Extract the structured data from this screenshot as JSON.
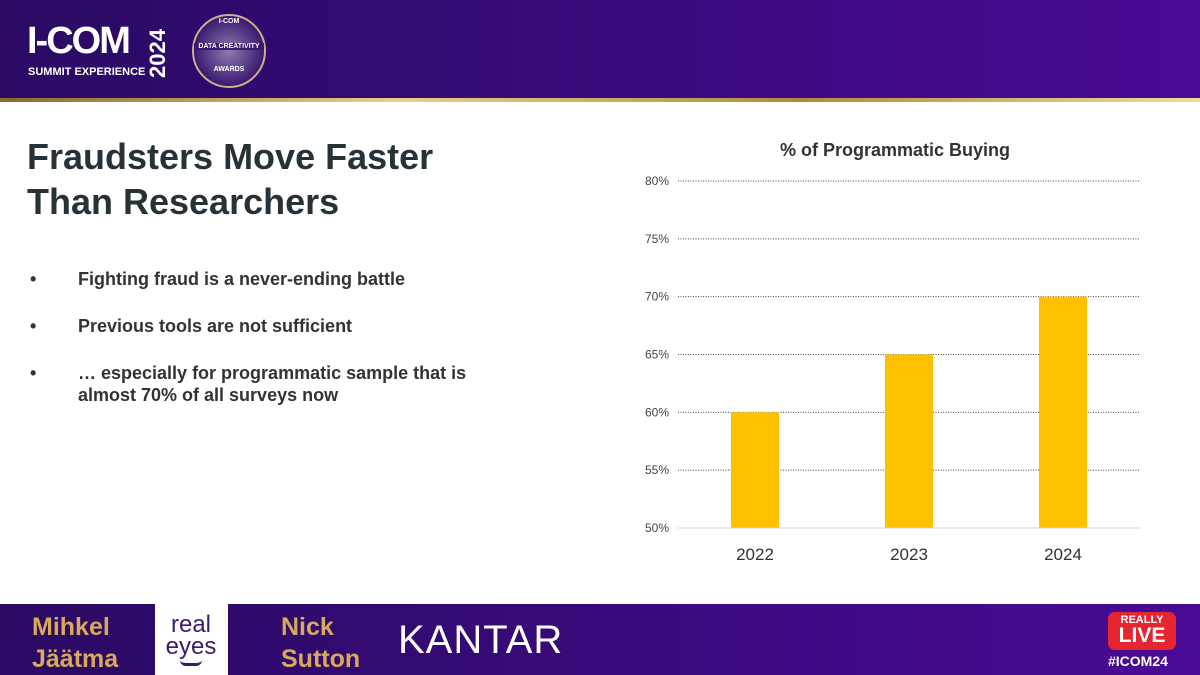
{
  "header": {
    "logo": "I-COM",
    "logo_sub": "SUMMIT EXPERIENCE",
    "year": "2024",
    "badge_top": "I-COM",
    "badge_mid": "DATA CREATIVITY",
    "badge_bottom": "AWARDS"
  },
  "slide": {
    "title": "Fraudsters Move Faster Than Researchers",
    "bullets": [
      {
        "dot": "•",
        "text": "Fighting fraud is a never-ending battle"
      },
      {
        "dot": "•",
        "text": "Previous tools are not sufficient"
      },
      {
        "dot": "•",
        "text": "… especially for programmatic sample that is almost 70% of all surveys now"
      }
    ]
  },
  "chart_data": {
    "type": "bar",
    "title": "% of Programmatic Buying",
    "categories": [
      "2022",
      "2023",
      "2024"
    ],
    "values": [
      60,
      65,
      70
    ],
    "ylim": [
      50,
      80
    ],
    "yticks": [
      "50%",
      "55%",
      "60%",
      "65%",
      "70%",
      "75%",
      "80%"
    ],
    "xlabel": "",
    "ylabel": "",
    "grid": true,
    "bar_color": "#FFC000"
  },
  "footer": {
    "speaker1_first": "Mihkel",
    "speaker1_last": "Jäätma",
    "logo1_top": "real",
    "logo1_bottom": "eyes",
    "speaker2_first": "Nick",
    "speaker2_last": "Sutton",
    "logo2": "KANTAR",
    "live_top": "REALLY",
    "live_main": "LIVE",
    "hashtag": "#ICOM24"
  }
}
